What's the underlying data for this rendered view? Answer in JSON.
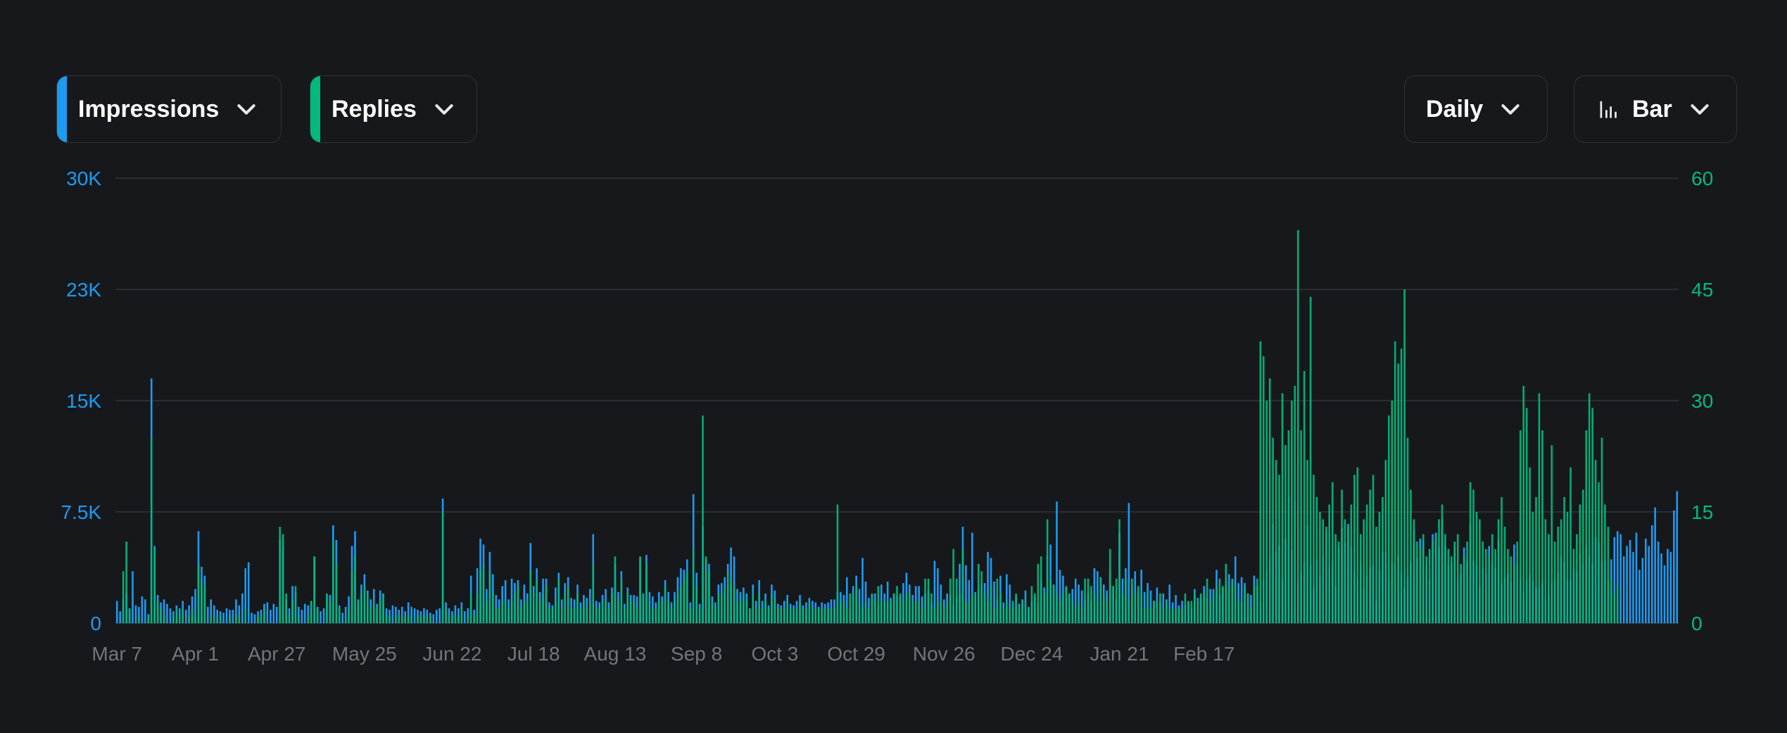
{
  "toolbar": {
    "metric_primary": {
      "label": "Impressions",
      "color": "#1d9bf0"
    },
    "metric_secondary": {
      "label": "Replies",
      "color": "#00ba7c"
    },
    "interval": {
      "label": "Daily"
    },
    "chart_type": {
      "label": "Bar",
      "icon": "bar-chart-icon"
    }
  },
  "chart_data": {
    "type": "bar",
    "y_left": {
      "ticks": [
        "0",
        "7.5K",
        "15K",
        "23K",
        "30K"
      ],
      "tick_values": [
        0,
        7500,
        15000,
        22500,
        30000
      ],
      "ylim": [
        0,
        30000
      ],
      "color": "#1d9bf0"
    },
    "y_right": {
      "ticks": [
        "0",
        "15",
        "30",
        "45",
        "60"
      ],
      "tick_values": [
        0,
        15,
        30,
        45,
        60
      ],
      "ylim": [
        0,
        60
      ],
      "color": "#00ba7c"
    },
    "x_ticks": [
      "Mar 7",
      "Apr 1",
      "Apr 27",
      "May 25",
      "Jun 22",
      "Jul 18",
      "Aug 13",
      "Sep 8",
      "Oct 3",
      "Oct 29",
      "Nov 26",
      "Dec 24",
      "Jan 21",
      "Feb 17"
    ],
    "x_tick_day_index": [
      0,
      25,
      51,
      79,
      107,
      133,
      159,
      185,
      210,
      236,
      264,
      292,
      320,
      347
    ],
    "grid": true,
    "series": [
      {
        "name": "Impressions",
        "axis": "left",
        "color": "#1d9bf0",
        "values": [
          1500,
          800,
          1600,
          2000,
          1000,
          3500,
          1200,
          1100,
          1800,
          1600,
          600,
          16500,
          5200,
          1900,
          1400,
          1600,
          1300,
          1000,
          800,
          1200,
          1000,
          1500,
          900,
          1200,
          1800,
          2300,
          6200,
          3800,
          3200,
          1100,
          1600,
          1200,
          900,
          800,
          700,
          1000,
          900,
          900,
          1600,
          1200,
          2000,
          3700,
          4100,
          700,
          600,
          800,
          900,
          1300,
          1400,
          900,
          1300,
          1100,
          5600,
          5200,
          1600,
          1000,
          2500,
          2100,
          1100,
          900,
          1300,
          1200,
          1500,
          4500,
          1100,
          800,
          1000,
          1900,
          1900,
          6600,
          5600,
          1200,
          700,
          1100,
          1800,
          5200,
          6200,
          1600,
          2600,
          3300,
          2200,
          1600,
          2300,
          1300,
          2200,
          2000,
          1000,
          900,
          1200,
          1100,
          900,
          1100,
          800,
          1400,
          1100,
          1000,
          900,
          800,
          1000,
          900,
          700,
          600,
          900,
          1000,
          8400,
          1400,
          1000,
          800,
          1200,
          1000,
          1400,
          800,
          1000,
          3200,
          900,
          3700,
          5700,
          5300,
          2300,
          4800,
          3300,
          1900,
          1600,
          2500,
          2900,
          1600,
          3000,
          2700,
          2900,
          1600,
          2600,
          2000,
          5400,
          2500,
          3700,
          2100,
          3000,
          3000,
          1400,
          1200,
          2400,
          3400,
          1600,
          2700,
          3100,
          1700,
          1600,
          2600,
          1400,
          1900,
          1700,
          2300,
          6000,
          1500,
          1400,
          1900,
          2300,
          1400,
          2400,
          4000,
          2100,
          3500,
          1300,
          2400,
          1900,
          1900,
          1800,
          4400,
          2000,
          4600,
          2100,
          1800,
          1400,
          2100,
          1800,
          2900,
          2100,
          1400,
          2100,
          3100,
          3700,
          3600,
          4300,
          1400,
          8700,
          3400,
          1300,
          6500,
          4300,
          4000,
          1800,
          1400,
          2600,
          2700,
          3100,
          4000,
          5100,
          4500,
          2300,
          2100,
          2400,
          2000,
          1000,
          2600,
          1500,
          2900,
          1500,
          2000,
          1200,
          2600,
          2200,
          1300,
          1200,
          1500,
          1900,
          1300,
          1200,
          1500,
          1900,
          1200,
          1400,
          1700,
          1500,
          1400,
          1100,
          1400,
          1300,
          1400,
          1600,
          1600,
          2100,
          2100,
          1900,
          3100,
          1000,
          2500,
          3200,
          2300,
          4400,
          2800,
          1700,
          1900,
          2000,
          1200,
          2600,
          2000,
          2800,
          1700,
          2000,
          1800,
          1800,
          2700,
          3400,
          2600,
          1900,
          2500,
          2500,
          1800,
          2000,
          2200,
          1300,
          4200,
          3700,
          2600,
          1600,
          2000,
          1900,
          1200,
          1800,
          4000,
          6500,
          3900,
          2900,
          6100,
          2100,
          2200,
          2600,
          2700,
          4800,
          4400,
          2800,
          1600,
          3200,
          1400,
          3300,
          2600,
          1300,
          1800,
          1300,
          1600,
          2200,
          1100,
          1500,
          1800,
          1300,
          2800,
          2400,
          4600,
          5300,
          2600,
          8200,
          3600,
          3200,
          2400,
          2000,
          2300,
          3000,
          2600,
          2200,
          1600,
          2000,
          1500,
          3700,
          3500,
          3100,
          2600,
          2200,
          3500,
          2500,
          1600,
          6100,
          3000,
          3700,
          8100,
          2600,
          3500,
          2100,
          3600,
          2100,
          2700,
          2200,
          1500,
          2400,
          1400,
          2000,
          1600,
          2600,
          1400,
          1900,
          1200,
          1500,
          1200,
          1400,
          1000,
          2300,
          1700,
          1800,
          2500,
          1700,
          2300,
          2300,
          3600,
          1900,
          2400,
          2800,
          3300,
          2900,
          4500,
          2700,
          3100,
          2700,
          2000,
          1900,
          3200,
          2500,
          1400,
          2900,
          3600,
          4400,
          6700,
          4800,
          5200,
          3100,
          5700,
          8500,
          4900,
          8200,
          2700,
          3500,
          4100,
          6600,
          3900,
          2400,
          4300,
          3200,
          4600,
          6200,
          3800,
          4200,
          2500,
          5100,
          6400,
          5400,
          6700,
          5100,
          3500,
          3000,
          4100,
          2400,
          3200,
          3800,
          3900,
          1500,
          3600,
          4800,
          4800,
          2800,
          4100,
          4000,
          4500,
          3400,
          2400,
          3100,
          4100,
          6300,
          4400,
          5700,
          5600,
          3800,
          3000,
          6000,
          6100,
          5100,
          7000,
          5200,
          3900,
          4100,
          5200,
          2900,
          3300,
          5100,
          4200,
          6700,
          4200,
          3900,
          2500,
          3700,
          3300,
          5200,
          4000,
          3700,
          5700,
          2700,
          3000,
          3300,
          2800,
          5300,
          4000,
          3100,
          2100,
          2900,
          3300,
          2800,
          2400,
          2400,
          2700,
          1600,
          2000,
          2700,
          2900,
          3400,
          4500,
          4100,
          2900,
          2900,
          3700,
          3400,
          4700,
          4000,
          5100,
          4500,
          4000,
          5800,
          5400,
          4200,
          4200,
          2900,
          4300,
          5800,
          6200,
          6000,
          4500,
          5200,
          5600,
          4800,
          6100,
          3600,
          4400,
          5700,
          5200,
          6600,
          7800,
          5500,
          4700,
          3900,
          5000,
          4800,
          7600,
          8900
        ]
      },
      {
        "name": "Replies",
        "axis": "right",
        "color": "#00ba7c",
        "values": [
          0,
          0,
          7,
          11,
          2,
          0,
          0,
          1,
          0,
          0,
          1,
          25,
          10,
          3,
          2,
          1,
          0,
          0,
          1,
          2,
          1,
          2,
          0,
          1,
          2,
          1,
          8,
          6,
          5,
          0,
          1,
          1,
          0,
          1,
          0,
          0,
          1,
          0,
          1,
          1,
          0,
          2,
          0,
          0,
          0,
          1,
          1,
          2,
          0,
          0,
          0,
          0,
          13,
          12,
          4,
          1,
          3,
          5,
          1,
          0,
          0,
          1,
          3,
          9,
          2,
          0,
          0,
          4,
          3,
          11,
          8,
          2,
          0,
          1,
          2,
          7,
          9,
          3,
          4,
          5,
          4,
          2,
          3,
          2,
          3,
          4,
          1,
          1,
          0,
          1,
          1,
          1,
          1,
          1,
          1,
          0,
          1,
          1,
          1,
          1,
          1,
          0,
          0,
          0,
          15,
          2,
          1,
          1,
          1,
          1,
          2,
          0,
          1,
          4,
          1,
          4,
          7,
          8,
          3,
          7,
          4,
          2,
          2,
          3,
          3,
          2,
          3,
          4,
          5,
          2,
          3,
          3,
          7,
          4,
          6,
          3,
          4,
          5,
          2,
          2,
          3,
          6,
          2,
          4,
          5,
          2,
          2,
          4,
          2,
          3,
          2,
          3,
          8,
          2,
          2,
          3,
          3,
          2,
          4,
          9,
          3,
          6,
          2,
          4,
          3,
          3,
          2,
          9,
          4,
          8,
          3,
          2,
          2,
          3,
          3,
          5,
          3,
          2,
          3,
          4,
          5,
          6,
          7,
          2,
          10,
          5,
          2,
          28,
          9,
          7,
          3,
          2,
          4,
          4,
          5,
          7,
          6,
          5,
          3,
          3,
          4,
          3,
          2,
          4,
          2,
          4,
          2,
          3,
          2,
          4,
          3,
          2,
          2,
          2,
          3,
          2,
          2,
          2,
          3,
          2,
          2,
          3,
          2,
          2,
          2,
          2,
          2,
          2,
          2,
          2,
          16,
          3,
          3,
          2,
          4,
          4,
          5,
          3,
          2,
          3,
          2,
          4,
          3,
          5,
          3,
          3,
          3,
          3,
          4,
          5,
          4,
          3,
          4,
          4,
          3,
          3,
          3,
          2,
          6,
          6,
          4,
          2,
          3,
          3,
          2,
          3,
          6,
          10,
          6,
          4,
          10,
          3,
          3,
          4,
          4,
          8,
          7,
          4,
          3,
          5,
          2,
          6,
          4,
          2,
          3,
          2,
          3,
          4,
          2,
          3,
          3,
          2,
          5,
          4,
          8,
          9,
          4,
          14,
          6,
          5,
          4,
          3,
          4,
          5,
          4,
          3,
          2,
          3,
          2,
          6,
          6,
          5,
          4,
          3,
          6,
          4,
          3,
          10,
          5,
          6,
          14,
          4,
          6,
          3,
          6,
          4,
          5,
          4,
          2,
          4,
          2,
          3,
          3,
          4,
          2,
          3,
          2,
          2,
          2,
          2,
          2,
          4,
          3,
          3,
          4,
          3,
          4,
          4,
          6,
          3,
          4,
          5,
          6,
          5,
          8,
          5,
          6,
          5,
          3,
          3,
          5,
          4,
          2,
          5,
          6,
          38,
          36,
          30,
          33,
          25,
          22,
          20,
          31,
          24,
          26,
          30,
          32,
          53,
          26,
          34,
          22,
          44,
          20,
          17,
          15,
          14,
          13,
          16,
          19,
          12,
          11,
          18,
          14,
          13,
          16,
          20,
          21,
          12,
          14,
          16,
          18,
          20,
          13,
          15,
          17,
          22,
          28,
          30,
          38,
          35,
          37,
          45,
          25,
          18,
          14,
          11,
          10,
          12,
          9,
          10,
          11,
          12,
          14,
          16,
          12,
          10,
          9,
          11,
          12,
          8,
          9,
          11,
          19,
          18,
          15,
          14,
          11,
          10,
          9,
          12,
          10,
          14,
          17,
          13,
          10,
          9,
          8,
          11,
          26,
          32,
          29,
          21,
          15,
          17,
          31,
          26,
          14,
          12,
          24,
          11,
          13,
          14,
          17,
          15,
          21,
          10,
          12,
          16,
          18,
          26,
          31,
          29,
          22,
          19,
          25,
          16,
          13,
          6,
          4,
          5
        ]
      }
    ]
  }
}
